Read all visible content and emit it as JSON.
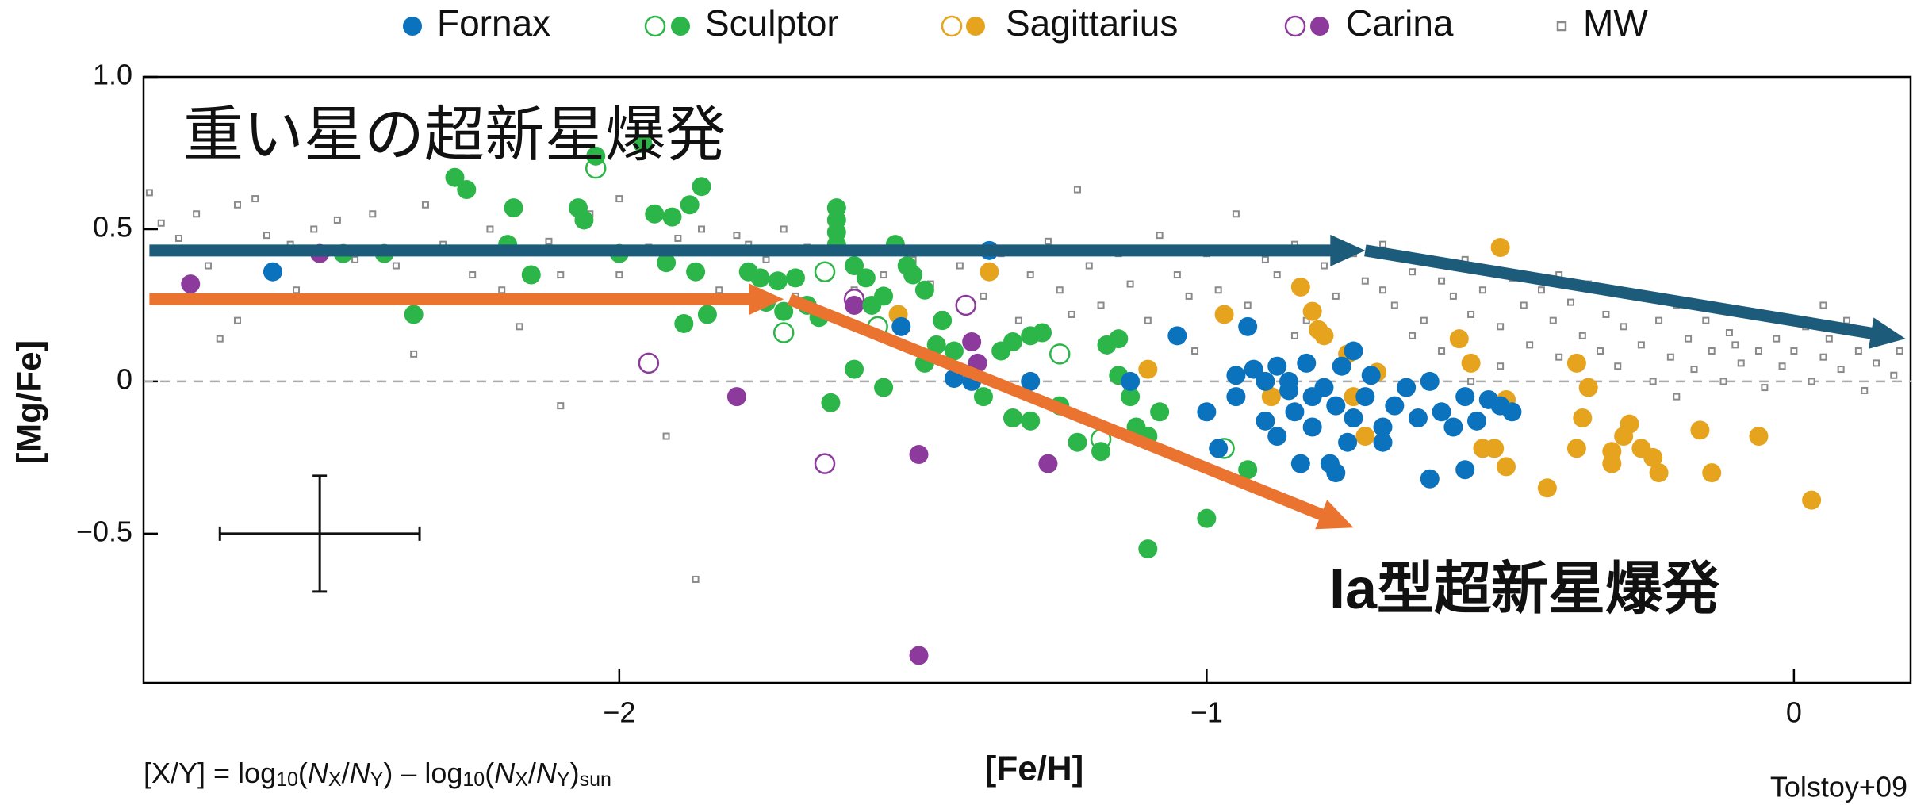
{
  "chart_data": {
    "type": "scatter",
    "xlabel": "[Fe/H]",
    "ylabel": "[Mg/Fe]",
    "xlim": [
      -2.81,
      0.2
    ],
    "ylim": [
      -0.99,
      1.0
    ],
    "xticks": [
      {
        "value": -2,
        "label": "−2"
      },
      {
        "value": -1,
        "label": "−1"
      },
      0
    ],
    "yticks": [
      {
        "value": 1.0,
        "label": "1.0"
      },
      {
        "value": 0.5,
        "label": "0.5"
      },
      0,
      {
        "value": -0.5,
        "label": "−0.5"
      }
    ],
    "hlines": [
      0
    ],
    "legend": "top",
    "series": [
      {
        "name": "Fornax",
        "color": "#0b72be",
        "legend_marker": "filled",
        "x": [
          -2.59,
          -1.37,
          -1.52,
          -1.4,
          -1.43,
          -1.05,
          -0.93,
          -0.75,
          -1.0,
          -0.98,
          -0.95,
          -0.92,
          -0.9,
          -0.88,
          -0.86,
          -0.85,
          -0.83,
          -0.82,
          -0.8,
          -0.78,
          -0.77,
          -0.76,
          -0.75,
          -0.73,
          -0.72,
          -0.7,
          -0.68,
          -0.66,
          -0.64,
          -0.62,
          -0.6,
          -0.58,
          -0.56,
          -0.54,
          -0.5,
          -0.48,
          -0.62,
          -0.56,
          -0.52,
          -0.78,
          -0.79,
          -0.88,
          -0.84,
          -0.9,
          -0.95,
          -1.13,
          -1.3,
          -0.7,
          -0.86,
          -0.82
        ],
        "y": [
          0.36,
          0.43,
          0.18,
          0.0,
          0.01,
          0.15,
          0.18,
          0.1,
          -0.1,
          -0.22,
          -0.05,
          0.04,
          0.0,
          0.05,
          -0.03,
          -0.1,
          0.06,
          -0.15,
          -0.02,
          -0.08,
          0.05,
          -0.2,
          -0.12,
          -0.05,
          0.02,
          -0.15,
          -0.08,
          -0.02,
          -0.12,
          0.0,
          -0.1,
          -0.15,
          -0.05,
          -0.13,
          -0.08,
          -0.1,
          -0.32,
          -0.29,
          -0.06,
          -0.3,
          -0.27,
          -0.18,
          -0.27,
          -0.13,
          0.02,
          0.0,
          0.0,
          -0.2,
          0.0,
          -0.05
        ]
      },
      {
        "name": "Sculptor",
        "color": "#2cb548",
        "legend_marker": "open+filled",
        "x": [
          -2.28,
          -2.26,
          -2.18,
          -2.19,
          -2.15,
          -2.0,
          -2.4,
          -2.35,
          -2.07,
          -2.06,
          -2.04,
          -1.96,
          -1.94,
          -1.91,
          -1.88,
          -1.86,
          -1.89,
          -1.87,
          -1.85,
          -1.78,
          -1.76,
          -1.73,
          -1.7,
          -1.72,
          -1.68,
          -1.66,
          -1.63,
          -1.63,
          -1.63,
          -1.63,
          -1.58,
          -1.6,
          -1.57,
          -1.55,
          -1.53,
          -1.51,
          -1.5,
          -1.48,
          -1.45,
          -1.46,
          -1.48,
          -1.6,
          -1.64,
          -1.55,
          -1.43,
          -1.38,
          -1.35,
          -1.33,
          -1.3,
          -1.28,
          -1.33,
          -1.3,
          -1.25,
          -1.22,
          -1.17,
          -1.15,
          -1.15,
          -1.13,
          -1.12,
          -1.1,
          -1.08,
          -1.18,
          -1.1,
          -1.0,
          -0.93,
          -1.75,
          -2.47,
          -1.92
        ],
        "y": [
          0.67,
          0.63,
          0.57,
          0.45,
          0.35,
          0.42,
          0.42,
          0.22,
          0.57,
          0.53,
          0.74,
          0.78,
          0.55,
          0.54,
          0.58,
          0.64,
          0.19,
          0.36,
          0.22,
          0.36,
          0.34,
          0.33,
          0.34,
          0.23,
          0.25,
          0.21,
          0.57,
          0.53,
          0.49,
          0.45,
          0.34,
          0.38,
          0.25,
          0.28,
          0.45,
          0.38,
          0.35,
          0.3,
          0.2,
          0.12,
          0.06,
          0.04,
          -0.07,
          -0.02,
          0.1,
          -0.05,
          0.1,
          0.13,
          0.15,
          0.16,
          -0.12,
          -0.13,
          -0.08,
          -0.2,
          0.12,
          0.14,
          0.02,
          -0.05,
          -0.15,
          -0.18,
          -0.1,
          -0.23,
          -0.55,
          -0.45,
          -0.29,
          0.26,
          0.42,
          0.39
        ],
        "open": {
          "x": [
            -2.04,
            -1.65,
            -1.72,
            -1.56,
            -1.25,
            -1.18,
            -0.97
          ],
          "y": [
            0.7,
            0.36,
            0.16,
            0.18,
            0.09,
            -0.19,
            -0.22
          ]
        }
      },
      {
        "name": "Sagittarius",
        "color": "#e6a31e",
        "legend_marker": "open+filled",
        "x": [
          -1.525,
          -1.37,
          -0.97,
          -0.89,
          -0.84,
          -0.82,
          -0.81,
          -0.8,
          -0.76,
          -0.71,
          -0.75,
          -0.73,
          -0.57,
          -0.55,
          -0.5,
          -0.49,
          -0.53,
          -0.51,
          -0.49,
          -0.42,
          -0.37,
          -0.35,
          -0.36,
          -0.37,
          -0.31,
          -0.31,
          -0.29,
          -0.28,
          -0.26,
          -0.24,
          -0.23,
          -0.16,
          -0.14,
          -0.06,
          0.03,
          -1.1
        ],
        "y": [
          0.22,
          0.36,
          0.22,
          -0.05,
          0.31,
          0.23,
          0.17,
          0.15,
          0.09,
          0.03,
          -0.05,
          -0.18,
          0.14,
          0.06,
          0.44,
          -0.06,
          -0.22,
          -0.22,
          -0.28,
          -0.35,
          0.06,
          -0.02,
          -0.12,
          -0.22,
          -0.27,
          -0.23,
          -0.18,
          -0.14,
          -0.22,
          -0.25,
          -0.3,
          -0.16,
          -0.3,
          -0.18,
          -0.39,
          0.04
        ]
      },
      {
        "name": "Carina",
        "color": "#8c3a9b",
        "legend_marker": "open+filled",
        "x": [
          -2.73,
          -2.51,
          -1.8,
          -1.49,
          -1.49,
          -1.4,
          -1.39,
          -1.27,
          -1.6
        ],
        "y": [
          0.32,
          0.42,
          -0.05,
          -0.24,
          -0.9,
          0.13,
          0.06,
          -0.27,
          0.25
        ],
        "open": {
          "x": [
            -1.95,
            -1.65,
            -1.41,
            -1.6
          ],
          "y": [
            0.06,
            -0.27,
            0.25,
            0.27
          ]
        }
      },
      {
        "name": "MW",
        "color": "#8a8a8a",
        "legend_marker": "square",
        "x": [
          -2.8,
          -2.78,
          -2.75,
          -2.72,
          -2.7,
          -2.68,
          -2.65,
          -2.62,
          -2.6,
          -2.56,
          -2.52,
          -2.48,
          -2.45,
          -2.42,
          -2.38,
          -2.35,
          -2.33,
          -2.3,
          -2.25,
          -2.22,
          -2.2,
          -2.17,
          -2.12,
          -2.1,
          -2.05,
          -2.0,
          -1.96,
          -1.95,
          -1.92,
          -1.9,
          -1.86,
          -1.83,
          -1.8,
          -1.78,
          -1.75,
          -1.72,
          -1.7,
          -1.68,
          -1.65,
          -2.1,
          -1.87,
          -2.65,
          -2.55,
          -2.0,
          -1.6,
          -1.55,
          -1.5,
          -1.47,
          -1.45,
          -1.42,
          -1.38,
          -1.35,
          -1.32,
          -1.3,
          -1.27,
          -1.25,
          -1.23,
          -1.22,
          -1.2,
          -1.18,
          -1.15,
          -1.13,
          -1.1,
          -1.08,
          -1.05,
          -1.03,
          -1.02,
          -1.0,
          -0.98,
          -0.95,
          -0.93,
          -0.9,
          -0.88,
          -0.85,
          -0.83,
          -0.8,
          -0.78,
          -0.75,
          -0.73,
          -0.7,
          -0.68,
          -0.65,
          -0.63,
          -0.6,
          -0.58,
          -0.56,
          -0.55,
          -0.53,
          -0.5,
          -0.48,
          -0.46,
          -0.45,
          -0.43,
          -0.41,
          -0.4,
          -0.38,
          -0.36,
          -0.35,
          -0.33,
          -0.32,
          -0.3,
          -0.29,
          -0.27,
          -0.26,
          -0.24,
          -0.23,
          -0.21,
          -0.2,
          -0.18,
          -0.17,
          -0.15,
          -0.14,
          -0.12,
          -0.11,
          -0.09,
          -0.08,
          -0.06,
          -0.05,
          -0.03,
          -0.02,
          0.0,
          0.02,
          0.03,
          0.05,
          0.06,
          0.08,
          0.09,
          0.11,
          0.12,
          0.14,
          0.15,
          0.17,
          0.18,
          -0.7,
          -0.6,
          -0.5,
          -0.4,
          -0.3,
          -0.2,
          -0.1,
          0.05,
          -0.85,
          -0.65,
          -0.55
        ],
        "y": [
          0.62,
          0.52,
          0.47,
          0.55,
          0.38,
          0.14,
          0.58,
          0.6,
          0.48,
          0.45,
          0.5,
          0.53,
          0.4,
          0.55,
          0.38,
          0.09,
          0.58,
          0.45,
          0.35,
          0.5,
          0.3,
          0.18,
          0.46,
          0.35,
          0.55,
          0.6,
          0.27,
          0.44,
          -0.18,
          0.47,
          0.5,
          0.3,
          0.48,
          0.45,
          0.4,
          0.5,
          0.28,
          0.44,
          0.38,
          -0.08,
          -0.65,
          0.2,
          0.3,
          0.35,
          0.3,
          0.35,
          0.4,
          0.32,
          0.22,
          0.38,
          0.28,
          0.42,
          0.2,
          0.35,
          0.46,
          0.3,
          0.22,
          0.63,
          0.38,
          0.25,
          0.42,
          0.32,
          0.2,
          0.48,
          0.35,
          0.28,
          0.1,
          0.42,
          0.3,
          0.55,
          0.25,
          0.4,
          0.35,
          0.45,
          0.2,
          0.38,
          0.28,
          0.42,
          0.33,
          0.3,
          0.25,
          0.36,
          0.2,
          0.33,
          0.28,
          0.4,
          0.22,
          0.3,
          0.18,
          0.34,
          0.25,
          0.12,
          0.3,
          0.2,
          0.08,
          0.26,
          0.15,
          0.32,
          0.1,
          0.22,
          0.05,
          0.18,
          0.28,
          0.12,
          0.0,
          0.2,
          0.08,
          0.25,
          0.14,
          0.04,
          0.2,
          0.1,
          0.0,
          0.16,
          0.06,
          0.22,
          0.1,
          -0.02,
          0.14,
          0.05,
          0.1,
          0.18,
          0.0,
          0.08,
          0.14,
          0.04,
          0.2,
          0.1,
          -0.03,
          0.06,
          0.15,
          0.02,
          0.1,
          0.45,
          0.1,
          0.05,
          0.35,
          0.3,
          -0.05,
          0.12,
          0.25,
          0.15,
          0.15,
          0.0
        ]
      }
    ],
    "error_bar": {
      "x": -2.51,
      "y": -0.5,
      "xerr": 0.17,
      "yerr": 0.19
    },
    "arrows": [
      {
        "color": "#1d5b7b",
        "from": [
          -2.8,
          0.43
        ],
        "to": [
          -0.73,
          0.43
        ]
      },
      {
        "color": "#1d5b7b",
        "from": [
          -0.73,
          0.43
        ],
        "to": [
          0.19,
          0.14
        ]
      },
      {
        "color": "#ea7330",
        "from": [
          -2.8,
          0.27
        ],
        "to": [
          -1.72,
          0.27
        ]
      },
      {
        "color": "#ea7330",
        "from": [
          -1.71,
          0.27
        ],
        "to": [
          -0.75,
          -0.48
        ]
      }
    ],
    "annotations": [
      {
        "text": "重い星の超新星爆発"
      },
      {
        "text": "Ia型超新星爆発"
      }
    ],
    "formula": [
      {
        "text": "[X/Y] = log"
      },
      {
        "text": "10",
        "sub": true
      },
      {
        "text": "("
      },
      {
        "text": "N",
        "italic": true
      },
      {
        "text": "X",
        "sub": true
      },
      {
        "text": "/"
      },
      {
        "text": "N",
        "italic": true
      },
      {
        "text": "Y",
        "sub": true
      },
      {
        "text": ") – log"
      },
      {
        "text": "10",
        "sub": true
      },
      {
        "text": "("
      },
      {
        "text": "N",
        "italic": true
      },
      {
        "text": "X",
        "sub": true
      },
      {
        "text": "/"
      },
      {
        "text": "N",
        "italic": true
      },
      {
        "text": "Y",
        "sub": true
      },
      {
        "text": ")"
      },
      {
        "text": "sun",
        "sub": true
      }
    ],
    "source": "Tolstoy+09"
  }
}
